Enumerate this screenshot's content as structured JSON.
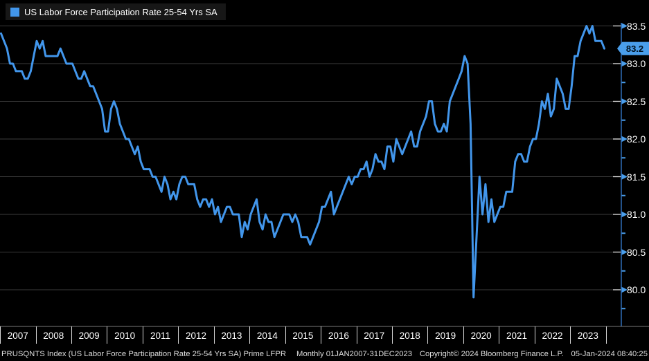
{
  "legend": {
    "label": "US Labor Force Participation Rate 25-54 Yrs SA",
    "swatch_color": "#4296eb"
  },
  "colors": {
    "background": "#000000",
    "line": "#4296eb",
    "badge": "#4a9eeb",
    "badge_text": "#00111f",
    "axis_line": "#2f6db8",
    "grid": "#3c3c3c",
    "major_tick_white": "#e8e8e8",
    "baseline": "#7a7a7a",
    "year_separator": "#d9d9d9",
    "text": "#ffffff"
  },
  "chart_data": {
    "type": "line",
    "title": "US Labor Force Participation Rate 25-54 Yrs SA",
    "x_unit": "month",
    "period": "Monthly",
    "range": "01JAN2007-31DEC2023",
    "x_tick_labels": [
      "2007",
      "2008",
      "2009",
      "2010",
      "2011",
      "2012",
      "2013",
      "2014",
      "2015",
      "2016",
      "2017",
      "2018",
      "2019",
      "2020",
      "2021",
      "2022",
      "2023"
    ],
    "y_axis_side": "right",
    "ylim": [
      79.5,
      83.55
    ],
    "y_ticks": [
      80.0,
      80.5,
      81.0,
      81.5,
      82.0,
      82.5,
      83.0,
      83.5
    ],
    "y_minor_step": 0.25,
    "grid": "horizontal",
    "last_value_label": "83.2",
    "series": [
      {
        "name": "US Labor Force Participation Rate 25-54 Yrs SA",
        "color": "#4296eb",
        "values": [
          83.4,
          83.3,
          83.2,
          83.0,
          83.0,
          82.9,
          82.9,
          82.9,
          82.8,
          82.8,
          82.9,
          83.1,
          83.3,
          83.2,
          83.3,
          83.1,
          83.1,
          83.1,
          83.1,
          83.1,
          83.2,
          83.1,
          83.0,
          83.0,
          83.0,
          82.9,
          82.8,
          82.8,
          82.9,
          82.8,
          82.7,
          82.7,
          82.6,
          82.5,
          82.4,
          82.1,
          82.1,
          82.4,
          82.5,
          82.4,
          82.2,
          82.1,
          82.0,
          82.0,
          81.9,
          81.8,
          81.9,
          81.7,
          81.6,
          81.6,
          81.6,
          81.5,
          81.5,
          81.4,
          81.3,
          81.5,
          81.4,
          81.2,
          81.3,
          81.2,
          81.4,
          81.5,
          81.5,
          81.4,
          81.4,
          81.4,
          81.2,
          81.1,
          81.2,
          81.2,
          81.1,
          81.2,
          81.0,
          81.1,
          80.9,
          81.0,
          81.1,
          81.1,
          81.0,
          81.0,
          81.0,
          80.7,
          80.9,
          80.8,
          81.0,
          81.1,
          81.2,
          80.9,
          80.8,
          81.0,
          80.9,
          80.9,
          80.7,
          80.8,
          80.9,
          81.0,
          81.0,
          81.0,
          80.9,
          81.0,
          80.9,
          80.7,
          80.7,
          80.7,
          80.6,
          80.7,
          80.8,
          80.9,
          81.1,
          81.1,
          81.2,
          81.3,
          81.0,
          81.1,
          81.2,
          81.3,
          81.4,
          81.5,
          81.4,
          81.5,
          81.5,
          81.6,
          81.6,
          81.7,
          81.5,
          81.6,
          81.8,
          81.7,
          81.7,
          81.6,
          81.9,
          81.9,
          81.7,
          82.0,
          81.9,
          81.8,
          81.9,
          82.0,
          82.1,
          81.9,
          81.9,
          82.1,
          82.2,
          82.3,
          82.5,
          82.5,
          82.2,
          82.1,
          82.1,
          82.2,
          82.1,
          82.5,
          82.6,
          82.7,
          82.8,
          82.9,
          83.1,
          83.0,
          82.2,
          79.9,
          80.7,
          81.5,
          81.0,
          81.4,
          80.9,
          81.2,
          80.9,
          81.0,
          81.1,
          81.1,
          81.3,
          81.3,
          81.3,
          81.7,
          81.8,
          81.8,
          81.7,
          81.7,
          81.9,
          82.0,
          82.0,
          82.2,
          82.5,
          82.4,
          82.6,
          82.3,
          82.4,
          82.8,
          82.7,
          82.6,
          82.4,
          82.4,
          82.7,
          83.1,
          83.1,
          83.3,
          83.4,
          83.5,
          83.4,
          83.5,
          83.3,
          83.3,
          83.3,
          83.2
        ]
      }
    ]
  },
  "footer": {
    "security": "PRUSQNTS Index (US Labor Force Participation Rate 25-54 Yrs SA) Prime LFPR",
    "periodicity": "Monthly 01JAN2007-31DEC2023",
    "copyright": "Copyright© 2024 Bloomberg Finance L.P.",
    "timestamp": "05-Jan-2024 08:40:25"
  }
}
